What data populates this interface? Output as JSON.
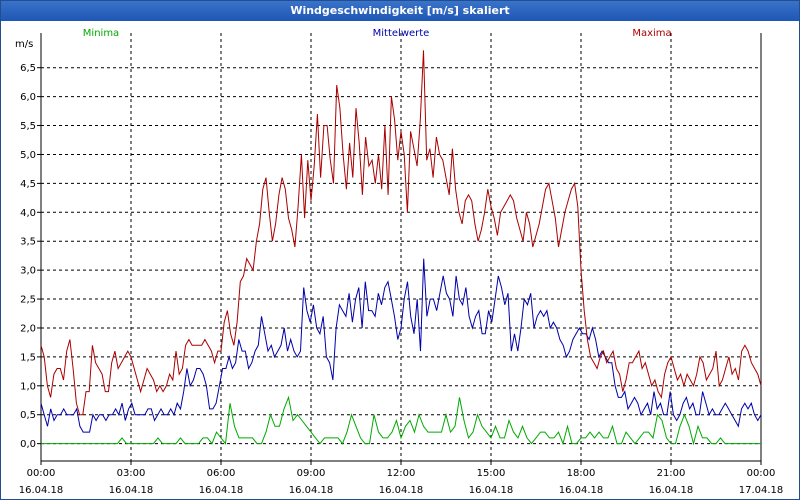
{
  "window": {
    "title": "Windgeschwindigkeit [m/s] skaliert"
  },
  "chart_data": {
    "type": "line",
    "title": "Windgeschwindigkeit [m/s] skaliert",
    "ylabel": "m/s",
    "ylim": [
      -0.3,
      7.1
    ],
    "y_ticks": [
      "0,0",
      "0,5",
      "1,0",
      "1,5",
      "2,0",
      "2,5",
      "3,0",
      "3,5",
      "4,0",
      "4,5",
      "5,0",
      "5,5",
      "6,0",
      "6,5"
    ],
    "y_tick_values": [
      0,
      0.5,
      1,
      1.5,
      2,
      2.5,
      3,
      3.5,
      4,
      4.5,
      5,
      5.5,
      6,
      6.5
    ],
    "x_hours_range": [
      0,
      24
    ],
    "x_ticks": [
      {
        "time": "00:00",
        "date": "16.04.18"
      },
      {
        "time": "03:00",
        "date": "16.04.18"
      },
      {
        "time": "06:00",
        "date": "16.04.18"
      },
      {
        "time": "09:00",
        "date": "16.04.18"
      },
      {
        "time": "12:00",
        "date": "16.04.18"
      },
      {
        "time": "15:00",
        "date": "16.04.18"
      },
      {
        "time": "18:00",
        "date": "16.04.18"
      },
      {
        "time": "21:00",
        "date": "16.04.18"
      },
      {
        "time": "00:00",
        "date": "17.04.18"
      }
    ],
    "grid": true,
    "legend_position": "top",
    "series": [
      {
        "name": "Minima",
        "color": "#00aa00",
        "values": [
          0,
          0,
          0,
          0,
          0,
          0,
          0,
          0,
          0,
          0,
          0,
          0,
          0,
          0,
          0,
          0,
          0,
          0,
          0.1,
          0,
          0,
          0,
          0,
          0,
          0,
          0,
          0.1,
          0,
          0,
          0,
          0,
          0.1,
          0,
          0,
          0,
          0,
          0.1,
          0.1,
          0,
          0.2,
          0.1,
          0,
          0.7,
          0.3,
          0.1,
          0.1,
          0.1,
          0.1,
          0,
          0,
          0.2,
          0.5,
          0.3,
          0.3,
          0.6,
          0.8,
          0.4,
          0.5,
          0.4,
          0.3,
          0.2,
          0.1,
          0,
          0.1,
          0.1,
          0.1,
          0.1,
          0,
          0.2,
          0.5,
          0.3,
          0.1,
          0,
          0,
          0.5,
          0.2,
          0.1,
          0.1,
          0.2,
          0.4,
          0.1,
          0.3,
          0.4,
          0.2,
          0.5,
          0.3,
          0.2,
          0.2,
          0.2,
          0.2,
          0.5,
          0.2,
          0.3,
          0.8,
          0.4,
          0.1,
          0.2,
          0.5,
          0.3,
          0.2,
          0.1,
          0.3,
          0.1,
          0.1,
          0.4,
          0.2,
          0.1,
          0.3,
          0.1,
          0,
          0.1,
          0.2,
          0.2,
          0.1,
          0.1,
          0.2,
          0,
          0.3,
          0,
          0,
          0.1,
          0.1,
          0.2,
          0.1,
          0.2,
          0.1,
          0.1,
          0.3,
          0,
          0,
          0.2,
          0.1,
          0,
          0.1,
          0.2,
          0.2,
          0.1,
          0.5,
          0.4,
          0.1,
          0,
          0,
          0.3,
          0.5,
          0.3,
          0,
          0.3,
          0.1,
          0.1,
          0,
          0,
          0.1,
          0,
          0,
          0,
          0,
          0,
          0,
          0,
          0,
          0
        ]
      },
      {
        "name": "Mittelwerte",
        "color": "#0000aa",
        "values": [
          0.7,
          0.5,
          0.3,
          0.6,
          0.4,
          0.5,
          0.5,
          0.6,
          0.5,
          0.5,
          0.5,
          0.6,
          0.3,
          0.2,
          0.2,
          0.2,
          0.5,
          0.4,
          0.5,
          0.5,
          0.4,
          0.5,
          0.5,
          0.6,
          0.5,
          0.7,
          0.4,
          0.6,
          0.7,
          0.5,
          0.5,
          0.5,
          0.5,
          0.6,
          0.6,
          0.4,
          0.5,
          0.6,
          0.5,
          0.5,
          0.6,
          0.5,
          0.7,
          0.6,
          0.9,
          1.3,
          1.0,
          1.1,
          1.3,
          1.3,
          1.2,
          1.0,
          0.6,
          0.6,
          0.7,
          1.0,
          1.3,
          1.3,
          1.5,
          1.3,
          1.4,
          1.8,
          1.6,
          1.6,
          1.3,
          1.4,
          1.6,
          1.7,
          2.2,
          1.9,
          1.6,
          1.7,
          1.5,
          1.6,
          1.7,
          2.0,
          1.6,
          1.8,
          1.6,
          1.5,
          1.6,
          2.7,
          2.3,
          2.1,
          2.4,
          2.0,
          1.9,
          2.2,
          1.5,
          1.4,
          1.1,
          2.0,
          2.4,
          2.3,
          2.2,
          2.6,
          2.1,
          2.5,
          2.7,
          2.0,
          2.8,
          2.3,
          2.3,
          2.2,
          2.6,
          2.4,
          2.7,
          2.8,
          2.5,
          2.2,
          1.8,
          2.0,
          2.5,
          2.8,
          2.2,
          1.9,
          2.5,
          1.6,
          3.2,
          2.2,
          2.5,
          2.5,
          2.3,
          2.6,
          2.9,
          2.6,
          2.5,
          2.2,
          2.9,
          2.5,
          2.4,
          2.7,
          2.2,
          2.0,
          2.2,
          2.3,
          1.9,
          1.9,
          2.3,
          2.1,
          2.5,
          2.9,
          2.7,
          2.4,
          2.6,
          1.6,
          1.9,
          1.6,
          2.0,
          2.5,
          2.4,
          2.6,
          2.0,
          2.2,
          2.3,
          2.2,
          2.3,
          2.0,
          2.1,
          2.0,
          1.8,
          1.7,
          1.5,
          1.6,
          1.8,
          1.9,
          2.0,
          1.9,
          1.9,
          1.8,
          2.0,
          1.8,
          1.5,
          1.6,
          1.5,
          1.4,
          1.4,
          1.0,
          0.8,
          0.8,
          0.9,
          0.6,
          0.7,
          0.8,
          0.7,
          0.5,
          0.6,
          0.7,
          0.5,
          0.9,
          0.6,
          0.7,
          0.5,
          0.5,
          0.9,
          0.5,
          0.4,
          0.5,
          0.7,
          0.8,
          0.6,
          0.7,
          0.5,
          0.5,
          0.9,
          0.7,
          0.5,
          0.6,
          0.5,
          0.5,
          0.6,
          0.7,
          0.6,
          0.5,
          0.4,
          0.3,
          0.6,
          0.7,
          0.6,
          0.7,
          0.5,
          0.4,
          0.5
        ]
      },
      {
        "name": "Maxima",
        "color": "#aa0000",
        "values": [
          1.7,
          1.5,
          1.0,
          0.8,
          1.2,
          1.3,
          1.3,
          1.1,
          1.6,
          1.8,
          1.3,
          0.7,
          0.5,
          0.5,
          0.9,
          0.9,
          1.7,
          1.4,
          1.3,
          1.2,
          0.9,
          0.9,
          1.4,
          1.6,
          1.3,
          1.4,
          1.5,
          1.6,
          1.5,
          1.3,
          1.1,
          0.9,
          1.1,
          1.3,
          1.2,
          1.1,
          0.9,
          1.0,
          0.9,
          1.0,
          1.2,
          1.1,
          1.6,
          1.2,
          1.3,
          1.7,
          1.8,
          1.7,
          1.7,
          1.7,
          1.7,
          1.8,
          1.7,
          1.6,
          1.4,
          1.6,
          1.6,
          2.1,
          2.3,
          1.9,
          1.7,
          2.1,
          2.8,
          2.9,
          3.2,
          3.1,
          3.0,
          3.5,
          3.8,
          4.4,
          4.6,
          4.0,
          3.5,
          3.8,
          4.3,
          4.6,
          4.4,
          3.9,
          3.7,
          3.4,
          4.1,
          5.0,
          3.9,
          4.9,
          4.2,
          4.8,
          5.7,
          4.6,
          5.5,
          5.5,
          4.9,
          4.5,
          6.2,
          5.8,
          5.0,
          4.4,
          5.2,
          4.6,
          5.8,
          5.2,
          4.3,
          5.3,
          4.8,
          4.9,
          4.5,
          5.0,
          4.4,
          5.5,
          4.3,
          6.0,
          5.6,
          4.9,
          5.4,
          5.0,
          4.0,
          5.4,
          5.1,
          4.8,
          5.6,
          6.8,
          4.9,
          5.1,
          4.6,
          5.3,
          5.0,
          4.9,
          4.6,
          4.3,
          5.1,
          4.4,
          4.0,
          3.8,
          4.2,
          4.3,
          4.2,
          3.8,
          3.5,
          3.7,
          4.0,
          4.4,
          4.1,
          3.9,
          3.6,
          4.0,
          4.1,
          4.2,
          4.3,
          4.2,
          3.9,
          3.7,
          3.5,
          4.0,
          3.8,
          3.4,
          3.6,
          3.8,
          4.1,
          4.4,
          4.5,
          4.2,
          3.9,
          3.4,
          3.7,
          4.0,
          4.2,
          4.4,
          4.5,
          4.1,
          3.0,
          2.3,
          1.8,
          1.5,
          1.4,
          1.3,
          1.5,
          1.6,
          1.4,
          1.5,
          1.6,
          1.3,
          1.2,
          0.9,
          1.1,
          1.4,
          1.4,
          1.5,
          1.6,
          1.3,
          1.4,
          1.2,
          1.0,
          1.1,
          0.9,
          0.8,
          1.2,
          1.4,
          1.5,
          1.3,
          1.1,
          1.2,
          1.0,
          1.2,
          1.1,
          1.0,
          1.2,
          1.5,
          1.4,
          1.1,
          1.2,
          1.3,
          1.6,
          1.0,
          1.1,
          1.3,
          1.5,
          1.2,
          1.3,
          1.1,
          1.6,
          1.7,
          1.6,
          1.4,
          1.3,
          1.2,
          1.0
        ]
      }
    ]
  }
}
